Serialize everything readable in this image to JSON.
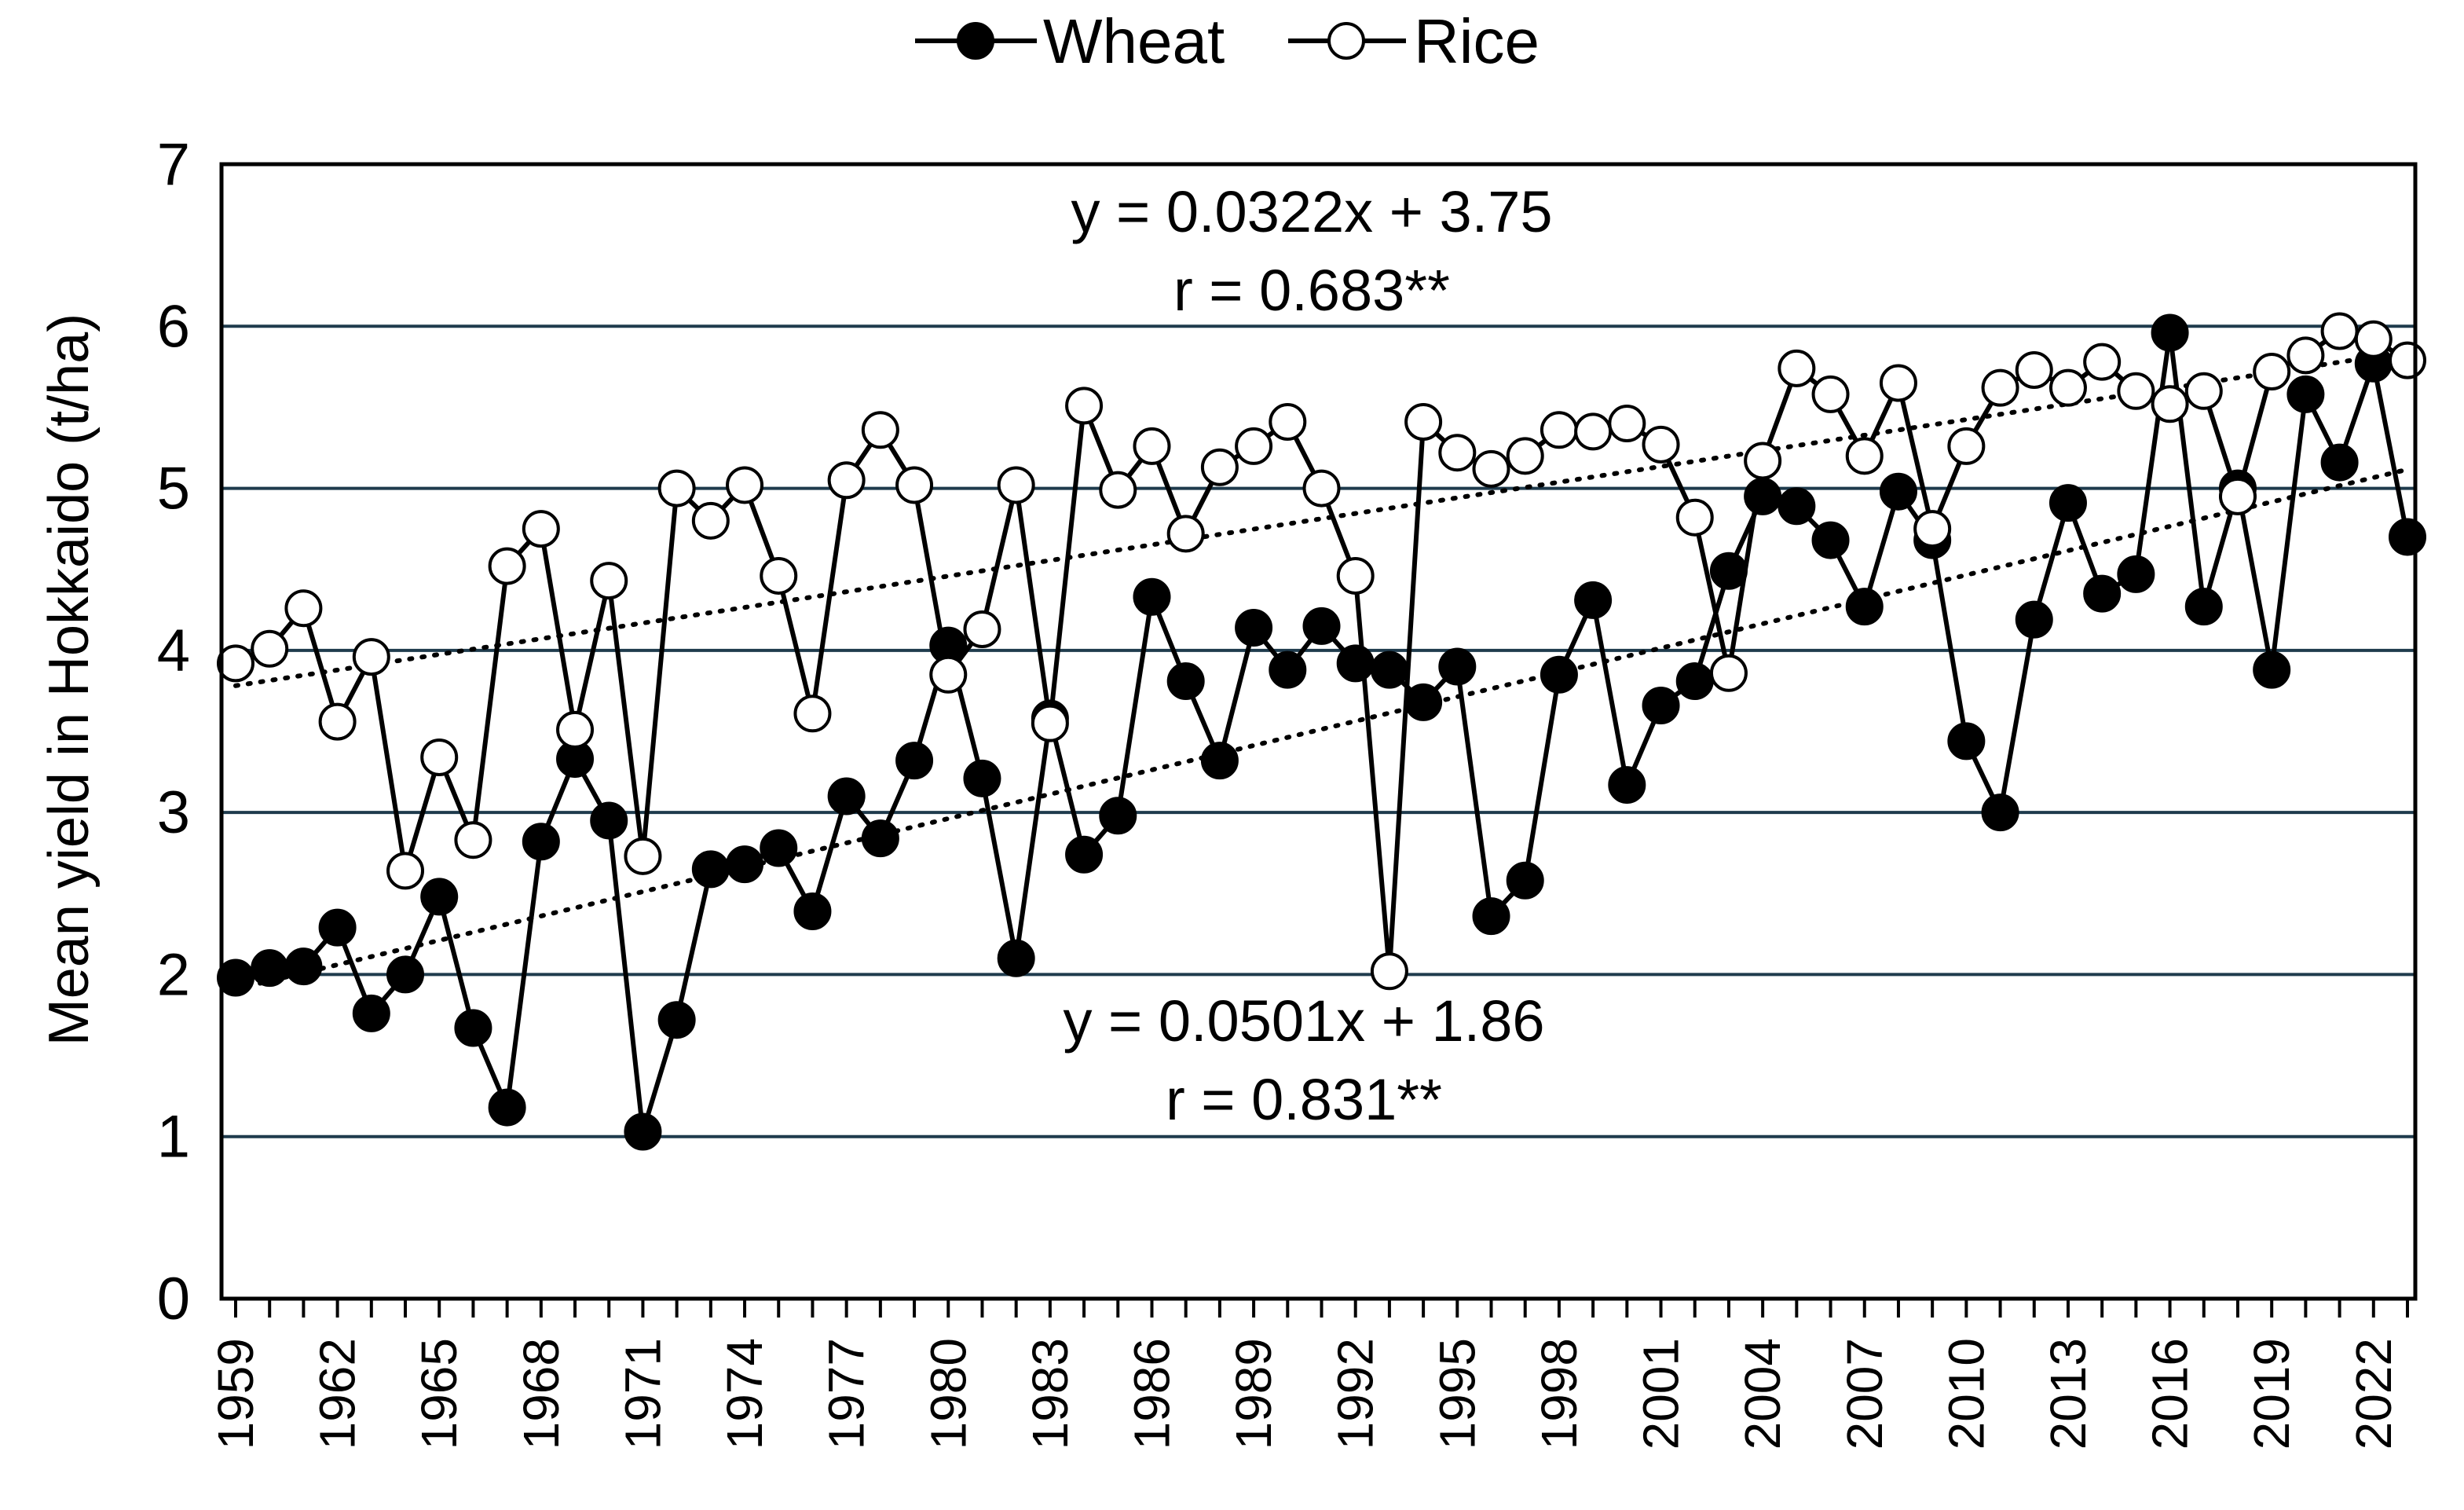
{
  "chart_data": {
    "type": "line",
    "title": "",
    "xlabel": "",
    "ylabel": "Mean yield in Hokkaido (t/ha)",
    "ylim": [
      0,
      7
    ],
    "yticks": [
      "0",
      "1",
      "2",
      "3",
      "4",
      "5",
      "6",
      "7"
    ],
    "grid": "horizontal",
    "legend_position": "top-center",
    "x": [
      1959,
      1960,
      1961,
      1962,
      1963,
      1964,
      1965,
      1966,
      1967,
      1968,
      1969,
      1970,
      1971,
      1972,
      1973,
      1974,
      1975,
      1976,
      1977,
      1978,
      1979,
      1980,
      1981,
      1982,
      1983,
      1984,
      1985,
      1986,
      1987,
      1988,
      1989,
      1990,
      1991,
      1992,
      1993,
      1994,
      1995,
      1996,
      1997,
      1998,
      1999,
      2000,
      2001,
      2002,
      2003,
      2004,
      2005,
      2006,
      2007,
      2008,
      2009,
      2010,
      2011,
      2012,
      2013,
      2014,
      2015,
      2016,
      2017,
      2018,
      2019,
      2020,
      2021,
      2022,
      2023
    ],
    "xtick_labels": [
      "1959",
      "1962",
      "1965",
      "1968",
      "1971",
      "1974",
      "1977",
      "1980",
      "1983",
      "1986",
      "1989",
      "1992",
      "1995",
      "1998",
      "2001",
      "2004",
      "2007",
      "2010",
      "2013",
      "2016",
      "2019",
      "2022"
    ],
    "series": [
      {
        "name": "Wheat",
        "marker": "filled-circle",
        "values": [
          1.98,
          2.04,
          2.05,
          2.29,
          1.76,
          2.0,
          2.48,
          1.67,
          1.18,
          2.82,
          3.33,
          2.95,
          1.03,
          1.72,
          2.65,
          2.68,
          2.78,
          2.39,
          3.1,
          2.84,
          3.32,
          4.03,
          3.21,
          2.1,
          3.58,
          2.74,
          2.98,
          4.33,
          3.81,
          3.32,
          4.14,
          3.88,
          4.15,
          3.92,
          3.88,
          3.68,
          3.9,
          2.36,
          2.58,
          3.85,
          4.31,
          3.17,
          3.66,
          3.81,
          4.49,
          4.95,
          4.89,
          4.68,
          4.27,
          4.98,
          4.68,
          3.44,
          3.0,
          4.19,
          4.91,
          4.35,
          4.47,
          5.96,
          4.27,
          5.0,
          3.88,
          5.58,
          5.16,
          5.77,
          4.7
        ]
      },
      {
        "name": "Rice",
        "marker": "open-circle",
        "values": [
          3.92,
          4.01,
          4.26,
          3.56,
          3.96,
          2.64,
          3.34,
          2.83,
          4.52,
          4.75,
          3.51,
          4.43,
          2.73,
          5.0,
          4.8,
          5.02,
          4.46,
          3.61,
          5.05,
          5.36,
          5.02,
          3.85,
          4.13,
          5.02,
          3.55,
          5.51,
          4.99,
          5.26,
          4.72,
          5.13,
          5.26,
          5.41,
          5.0,
          4.46,
          2.02,
          5.41,
          5.22,
          5.12,
          5.2,
          5.36,
          5.35,
          5.4,
          5.27,
          4.82,
          3.86,
          5.17,
          5.74,
          5.58,
          5.2,
          5.65,
          4.75,
          5.26,
          5.62,
          5.73,
          5.62,
          5.78,
          5.6,
          5.52,
          5.6,
          4.95,
          5.72,
          5.82,
          5.97,
          5.92,
          5.79
        ]
      }
    ],
    "trendlines": [
      {
        "series": "Rice",
        "equation": "y = 0.0322x + 3.75",
        "r_text": "r = 0.683**",
        "slope": 0.0322,
        "intercept": 3.75
      },
      {
        "series": "Wheat",
        "equation": "y = 0.0501x + 1.86",
        "r_text": "r = 0.831**",
        "slope": 0.0501,
        "intercept": 1.86
      }
    ]
  },
  "legend": {
    "wheat_label": "Wheat",
    "rice_label": "Rice"
  },
  "colors": {
    "line": "#000000",
    "gridline": "#1f3b4d",
    "open_marker_fill": "#ffffff"
  }
}
